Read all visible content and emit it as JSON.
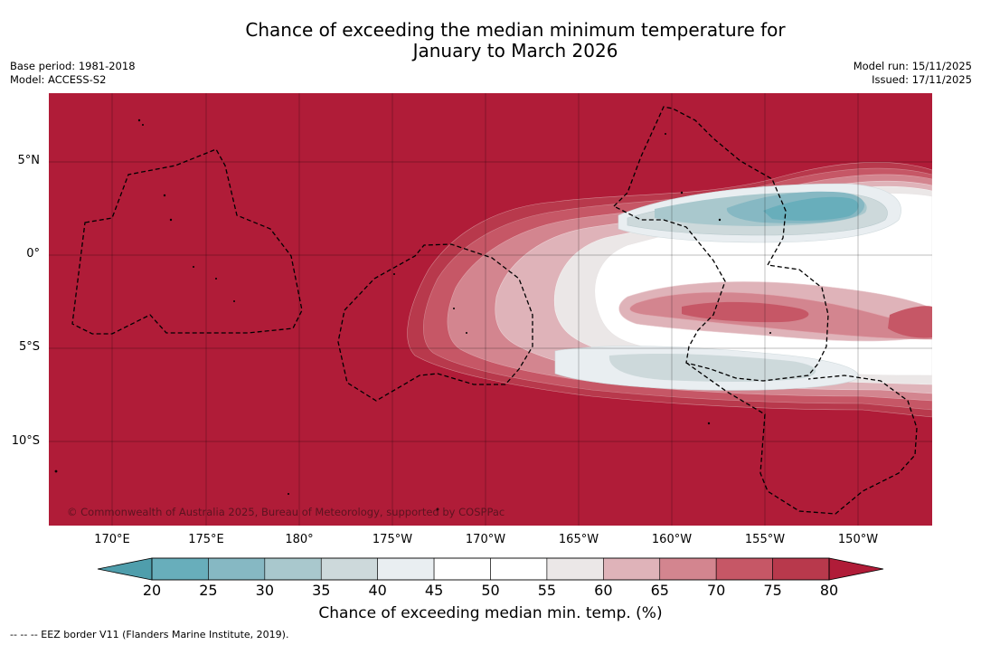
{
  "title_line1": "Chance of exceeding the median minimum temperature for",
  "title_line2": "January to March 2026",
  "base_period": "Base period: 1981-2018",
  "model": "Model: ACCESS-S2",
  "model_run": "Model run: 15/11/2025",
  "issued": "Issued: 17/11/2025",
  "lat_labels": [
    "5°N",
    "0°",
    "5°S",
    "10°S"
  ],
  "lon_labels": [
    "170°E",
    "175°E",
    "180°",
    "175°W",
    "170°W",
    "165°W",
    "160°W",
    "155°W",
    "150°W"
  ],
  "copyright": "© Commonwealth of Australia 2025, Bureau of Meteorology, supported by COSPPac",
  "colorbar": {
    "title": "Chance of exceeding median min. temp. (%)",
    "ticks": [
      "20",
      "25",
      "30",
      "35",
      "40",
      "45",
      "50",
      "55",
      "60",
      "65",
      "70",
      "75",
      "80"
    ],
    "colors": [
      "#4f9eac",
      "#68aebb",
      "#86b8c3",
      "#a9c8cd",
      "#cdd9db",
      "#e9eef1",
      "#ffffff",
      "#ffffff",
      "#ebe7e7",
      "#dfb3b9",
      "#d3858f",
      "#c65766",
      "#b8394c",
      "#b01c38"
    ]
  },
  "ocean_color": "#b01c38",
  "footnote": "--  --  -- EEZ border V11 (Flanders Marine Institute, 2019)."
}
